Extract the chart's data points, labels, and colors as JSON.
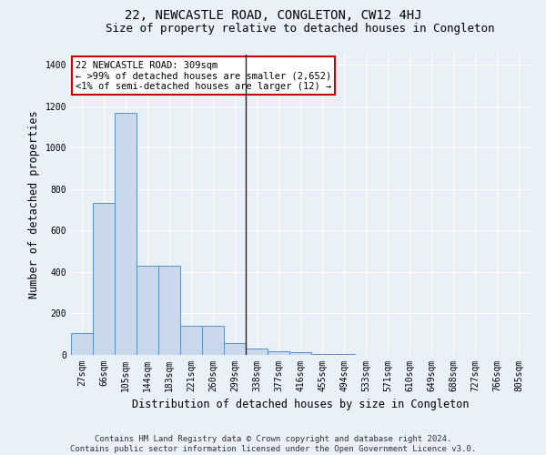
{
  "title": "22, NEWCASTLE ROAD, CONGLETON, CW12 4HJ",
  "subtitle": "Size of property relative to detached houses in Congleton",
  "xlabel": "Distribution of detached houses by size in Congleton",
  "ylabel": "Number of detached properties",
  "footer_line1": "Contains HM Land Registry data © Crown copyright and database right 2024.",
  "footer_line2": "Contains public sector information licensed under the Open Government Licence v3.0.",
  "bar_labels": [
    "27sqm",
    "66sqm",
    "105sqm",
    "144sqm",
    "183sqm",
    "221sqm",
    "260sqm",
    "299sqm",
    "338sqm",
    "377sqm",
    "416sqm",
    "455sqm",
    "494sqm",
    "533sqm",
    "571sqm",
    "610sqm",
    "649sqm",
    "688sqm",
    "727sqm",
    "766sqm",
    "805sqm"
  ],
  "bar_values": [
    107,
    735,
    1170,
    430,
    430,
    140,
    140,
    55,
    30,
    18,
    12,
    5,
    3,
    2,
    2,
    2,
    2,
    2,
    2,
    2,
    2
  ],
  "bar_color": "#c9d9eb",
  "bar_edge_color": "#5b8fc9",
  "background_color": "#eaf0f8",
  "grid_color": "#ffffff",
  "annotation_text": "22 NEWCASTLE ROAD: 309sqm\n← >99% of detached houses are smaller (2,652)\n<1% of semi-detached houses are larger (12) →",
  "vline_x_index": 7.5,
  "ylim": [
    0,
    1450
  ],
  "yticks": [
    0,
    200,
    400,
    600,
    800,
    1000,
    1200,
    1400
  ],
  "annotation_box_color": "#ffffff",
  "annotation_border_color": "#cc0000",
  "title_fontsize": 10,
  "subtitle_fontsize": 9,
  "axis_label_fontsize": 8.5,
  "tick_fontsize": 7,
  "footer_fontsize": 6.5,
  "annot_fontsize": 7.5
}
